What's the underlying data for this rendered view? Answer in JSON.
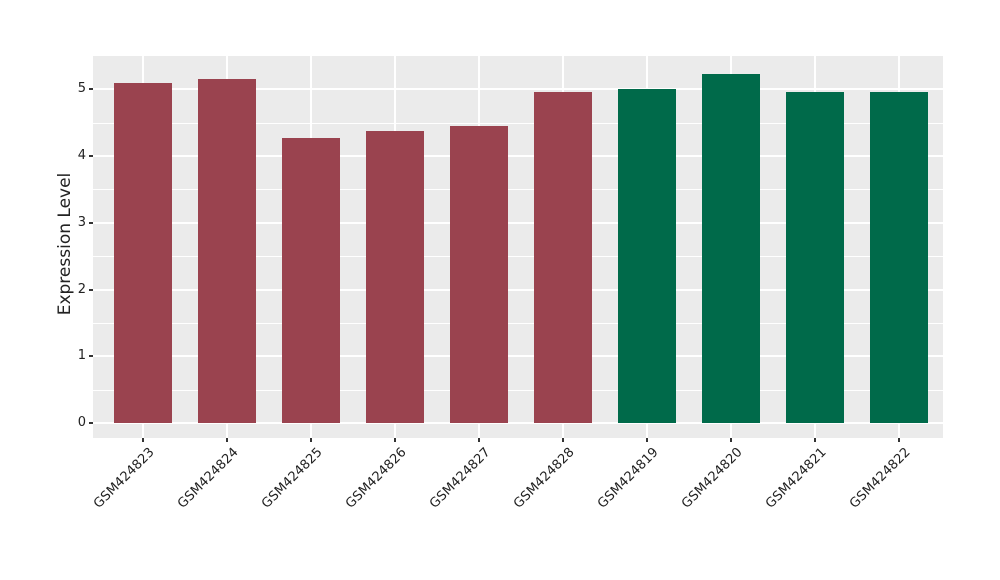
{
  "chart": {
    "ylabel": "Expression Level"
  },
  "chart_data": {
    "type": "bar",
    "title": "",
    "xlabel": "",
    "ylabel": "Expression Level",
    "categories": [
      "GSM424823",
      "GSM424824",
      "GSM424825",
      "GSM424826",
      "GSM424827",
      "GSM424828",
      "GSM424819",
      "GSM424820",
      "GSM424821",
      "GSM424822"
    ],
    "values": [
      5.1,
      5.16,
      4.27,
      4.38,
      4.45,
      4.96,
      5.01,
      5.23,
      4.96,
      4.96
    ],
    "bar_groups": [
      0,
      0,
      0,
      0,
      0,
      0,
      1,
      1,
      1,
      1
    ],
    "group_colors": [
      "#9a434f",
      "#006a4a"
    ],
    "yticks": [
      0,
      1,
      2,
      3,
      4,
      5
    ],
    "yticks_minor": [
      0.5,
      1.5,
      2.5,
      3.5,
      4.5
    ],
    "ylim": [
      -0.225,
      5.5
    ],
    "x_tick_rotation_deg": 45,
    "legend_position": "none",
    "grid": "on",
    "colors": {
      "panel_background": "#ebebeb",
      "grid_major": "#ffffff",
      "grid_minor": "#ffffff",
      "tick_mark": "#333333",
      "text": "#222222",
      "figure_background": "#ffffff"
    }
  }
}
